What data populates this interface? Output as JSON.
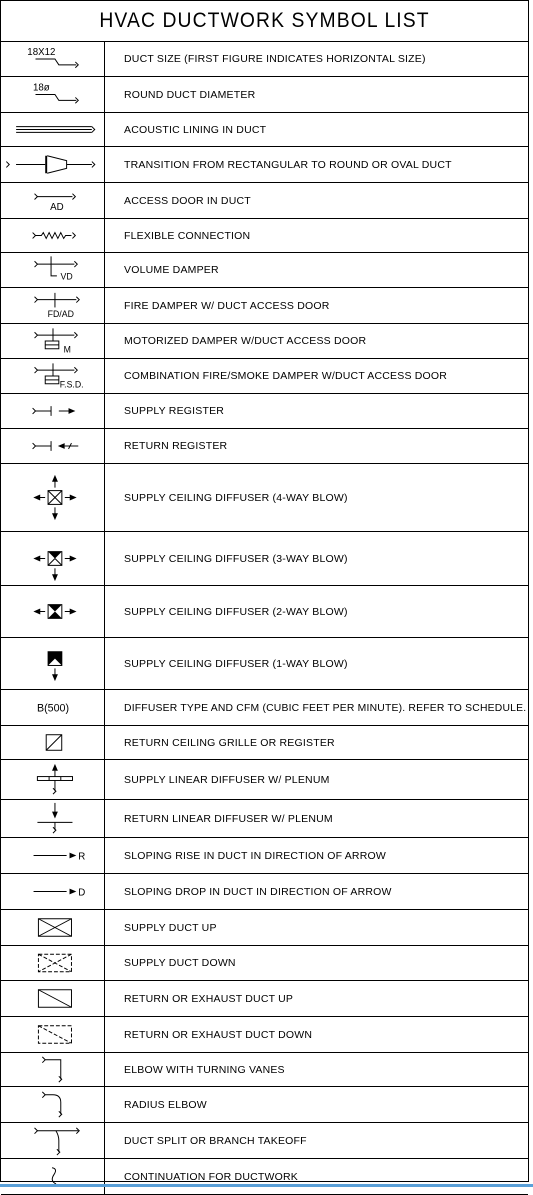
{
  "title": "HVAC DUCTWORK SYMBOL LIST",
  "rows": [
    {
      "symbol": "duct-size",
      "symbol_text": "18X12",
      "label": "DUCT SIZE (FIRST FIGURE INDICATES HORIZONTAL SIZE)"
    },
    {
      "symbol": "round-duct",
      "symbol_text": "18ø",
      "label": "ROUND DUCT DIAMETER"
    },
    {
      "symbol": "acoustic-lining",
      "label": "ACOUSTIC LINING IN DUCT"
    },
    {
      "symbol": "transition",
      "label": "TRANSITION FROM RECTANGULAR TO ROUND OR OVAL DUCT"
    },
    {
      "symbol": "access-door",
      "symbol_text": "AD",
      "label": "ACCESS DOOR IN DUCT"
    },
    {
      "symbol": "flexible-connection",
      "label": "FLEXIBLE CONNECTION"
    },
    {
      "symbol": "volume-damper",
      "symbol_text": "VD",
      "label": "VOLUME DAMPER"
    },
    {
      "symbol": "fire-damper",
      "symbol_text": "FD/AD",
      "label": "FIRE DAMPER W/ DUCT ACCESS DOOR"
    },
    {
      "symbol": "motorized-damper",
      "symbol_text": "M",
      "label": "MOTORIZED DAMPER W/DUCT ACCESS DOOR"
    },
    {
      "symbol": "fire-smoke-damper",
      "symbol_text": "F.S.D.",
      "label": "COMBINATION FIRE/SMOKE DAMPER W/DUCT ACCESS DOOR"
    },
    {
      "symbol": "supply-register",
      "label": "SUPPLY REGISTER"
    },
    {
      "symbol": "return-register",
      "label": "RETURN REGISTER"
    },
    {
      "symbol": "diffuser-4way",
      "label": "SUPPLY CEILING DIFFUSER (4-WAY BLOW)"
    },
    {
      "symbol": "diffuser-3way",
      "label": "SUPPLY CEILING DIFFUSER (3-WAY BLOW)"
    },
    {
      "symbol": "diffuser-2way",
      "label": "SUPPLY CEILING DIFFUSER (2-WAY BLOW)"
    },
    {
      "symbol": "diffuser-1way",
      "label": "SUPPLY CEILING DIFFUSER (1-WAY BLOW)"
    },
    {
      "symbol": "diffuser-type",
      "symbol_text": "B(500)",
      "label": "DIFFUSER TYPE AND CFM (CUBIC FEET PER MINUTE).  REFER TO SCHEDULE."
    },
    {
      "symbol": "return-grille",
      "label": "RETURN CEILING GRILLE OR REGISTER"
    },
    {
      "symbol": "supply-linear",
      "label": "SUPPLY LINEAR DIFFUSER W/ PLENUM"
    },
    {
      "symbol": "return-linear",
      "label": "RETURN LINEAR DIFFUSER W/ PLENUM"
    },
    {
      "symbol": "sloping-rise",
      "symbol_text": "R",
      "label": "SLOPING RISE IN DUCT IN DIRECTION OF ARROW"
    },
    {
      "symbol": "sloping-drop",
      "symbol_text": "D",
      "label": "SLOPING DROP IN DUCT IN DIRECTION OF ARROW"
    },
    {
      "symbol": "supply-duct-up",
      "label": "SUPPLY DUCT UP"
    },
    {
      "symbol": "supply-duct-down",
      "label": "SUPPLY DUCT DOWN"
    },
    {
      "symbol": "return-duct-up",
      "label": "RETURN OR EXHAUST DUCT UP"
    },
    {
      "symbol": "return-duct-down",
      "label": "RETURN OR EXHAUST DUCT DOWN"
    },
    {
      "symbol": "elbow-vanes",
      "label": "ELBOW WITH TURNING VANES"
    },
    {
      "symbol": "radius-elbow",
      "label": "RADIUS ELBOW"
    },
    {
      "symbol": "duct-split",
      "label": "DUCT SPLIT OR BRANCH TAKEOFF"
    },
    {
      "symbol": "continuation",
      "label": "CONTINUATION FOR DUCTWORK"
    }
  ]
}
